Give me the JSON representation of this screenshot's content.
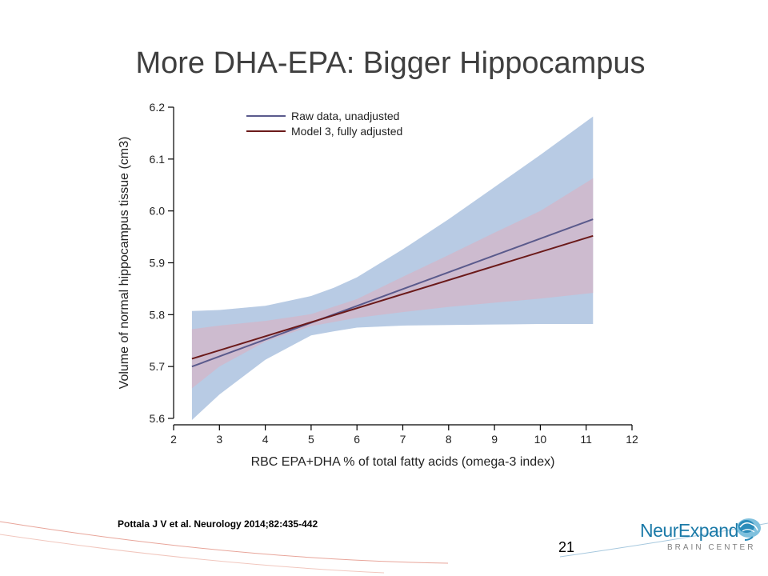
{
  "slide": {
    "title": "More DHA-EPA: Bigger Hippocampus",
    "citation": "Pottala J V et al. Neurology 2014;82:435-442",
    "page_number": "21"
  },
  "logo": {
    "name_part1": "NeurExpand",
    "name_part2": "BRAIN CENTER",
    "icon": "brain-icon",
    "color": "#1b7aa8"
  },
  "chart_data": {
    "type": "line",
    "title": "",
    "xlabel": "RBC EPA+DHA % of total fatty acids (omega-3 index)",
    "ylabel": "Volume of normal hippocampus tissue (cm3)",
    "xlim": [
      2,
      12
    ],
    "ylim": [
      5.6,
      6.2
    ],
    "xticks": [
      2,
      3,
      4,
      5,
      6,
      7,
      8,
      9,
      10,
      11,
      12
    ],
    "yticks": [
      "5.6",
      "5.7",
      "5.8",
      "5.9",
      "6.0",
      "6.1",
      "6.2"
    ],
    "legend_position": "top-left",
    "grid": false,
    "series": [
      {
        "name": "Raw data, unadjusted",
        "color": "#5a5a8c",
        "band_color": "#b8cbe4",
        "x": [
          2.4,
          11.15
        ],
        "y": [
          5.7,
          5.984
        ],
        "ci_x": [
          2.4,
          3,
          4,
          5,
          5.5,
          6,
          6.5,
          7,
          8,
          9,
          10,
          11.15
        ],
        "ci_lower": [
          5.597,
          5.646,
          5.713,
          5.76,
          5.768,
          5.775,
          5.777,
          5.779,
          5.78,
          5.781,
          5.782,
          5.782
        ],
        "ci_upper": [
          5.807,
          5.809,
          5.817,
          5.836,
          5.852,
          5.872,
          5.899,
          5.926,
          5.984,
          6.046,
          6.108,
          6.182
        ]
      },
      {
        "name": "Model 3, fully adjusted",
        "color": "#6b1a1a",
        "band_color": "#d6b4c6",
        "x": [
          2.4,
          11.15
        ],
        "y": [
          5.715,
          5.952
        ],
        "ci_x": [
          2.4,
          3,
          4,
          5,
          6,
          7,
          8,
          9,
          10,
          11.15
        ],
        "ci_lower": [
          5.658,
          5.7,
          5.748,
          5.778,
          5.794,
          5.805,
          5.815,
          5.823,
          5.831,
          5.842
        ],
        "ci_upper": [
          5.772,
          5.779,
          5.788,
          5.801,
          5.83,
          5.873,
          5.915,
          5.958,
          6.0,
          6.063
        ]
      }
    ]
  }
}
